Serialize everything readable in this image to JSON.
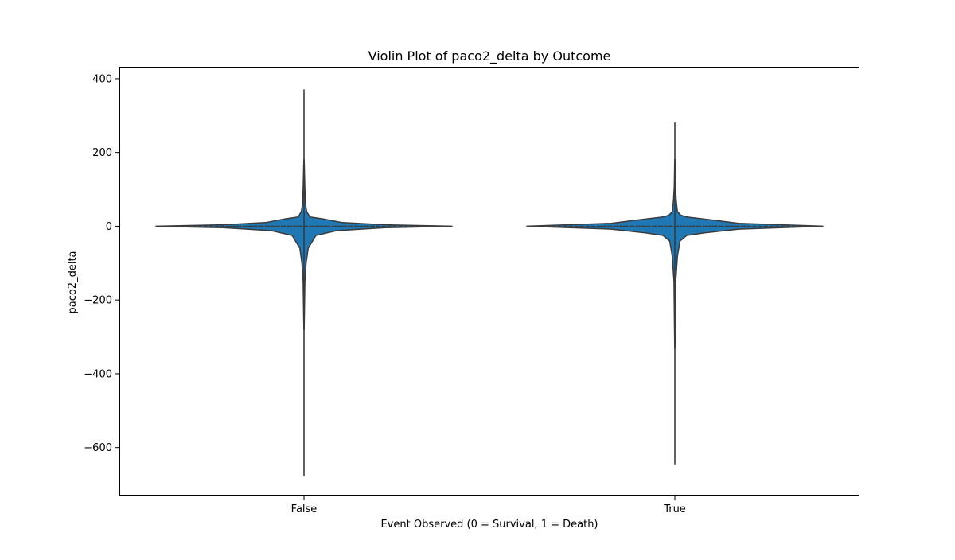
{
  "chart_data": {
    "type": "violin",
    "title": "Violin Plot of paco2_delta by Outcome",
    "xlabel": "Event Observed (0 = Survival, 1 = Death)",
    "ylabel": "paco2_delta",
    "categories": [
      "False",
      "True"
    ],
    "ylim": [
      -730,
      430
    ],
    "yticks": [
      400,
      200,
      0,
      -200,
      -400,
      -600
    ],
    "ytick_labels": [
      "400",
      "200",
      "0",
      "−200",
      "−400",
      "−600"
    ],
    "grid": false,
    "legend": "none",
    "fill_color": "#1f77b4",
    "edge_color": "#3b3b3b",
    "violins": [
      {
        "category": "False",
        "min": -678,
        "max": 371,
        "median": 0,
        "q1": -1,
        "q3": 1,
        "density_profile": [
          {
            "y": 180,
            "w": 0.001
          },
          {
            "y": 100,
            "w": 0.006
          },
          {
            "y": 60,
            "w": 0.01
          },
          {
            "y": 40,
            "w": 0.018
          },
          {
            "y": 25,
            "w": 0.04
          },
          {
            "y": 20,
            "w": 0.13
          },
          {
            "y": 10,
            "w": 0.26
          },
          {
            "y": 4,
            "w": 0.55
          },
          {
            "y": 0,
            "w": 1.0
          },
          {
            "y": -4,
            "w": 0.55
          },
          {
            "y": -12,
            "w": 0.22
          },
          {
            "y": -25,
            "w": 0.08
          },
          {
            "y": -60,
            "w": 0.028
          },
          {
            "y": -100,
            "w": 0.014
          },
          {
            "y": -150,
            "w": 0.006
          },
          {
            "y": -280,
            "w": 0.001
          }
        ]
      },
      {
        "category": "True",
        "min": -645,
        "max": 281,
        "median": 0,
        "q1": -1,
        "q3": 1,
        "density_profile": [
          {
            "y": 180,
            "w": 0.001
          },
          {
            "y": 110,
            "w": 0.004
          },
          {
            "y": 70,
            "w": 0.009
          },
          {
            "y": 40,
            "w": 0.017
          },
          {
            "y": 30,
            "w": 0.04
          },
          {
            "y": 25,
            "w": 0.08
          },
          {
            "y": 17,
            "w": 0.25
          },
          {
            "y": 8,
            "w": 0.43
          },
          {
            "y": 0,
            "w": 1.0
          },
          {
            "y": -8,
            "w": 0.43
          },
          {
            "y": -18,
            "w": 0.2
          },
          {
            "y": -25,
            "w": 0.08
          },
          {
            "y": -40,
            "w": 0.035
          },
          {
            "y": -80,
            "w": 0.018
          },
          {
            "y": -150,
            "w": 0.006
          },
          {
            "y": -330,
            "w": 0.001
          }
        ]
      }
    ]
  }
}
